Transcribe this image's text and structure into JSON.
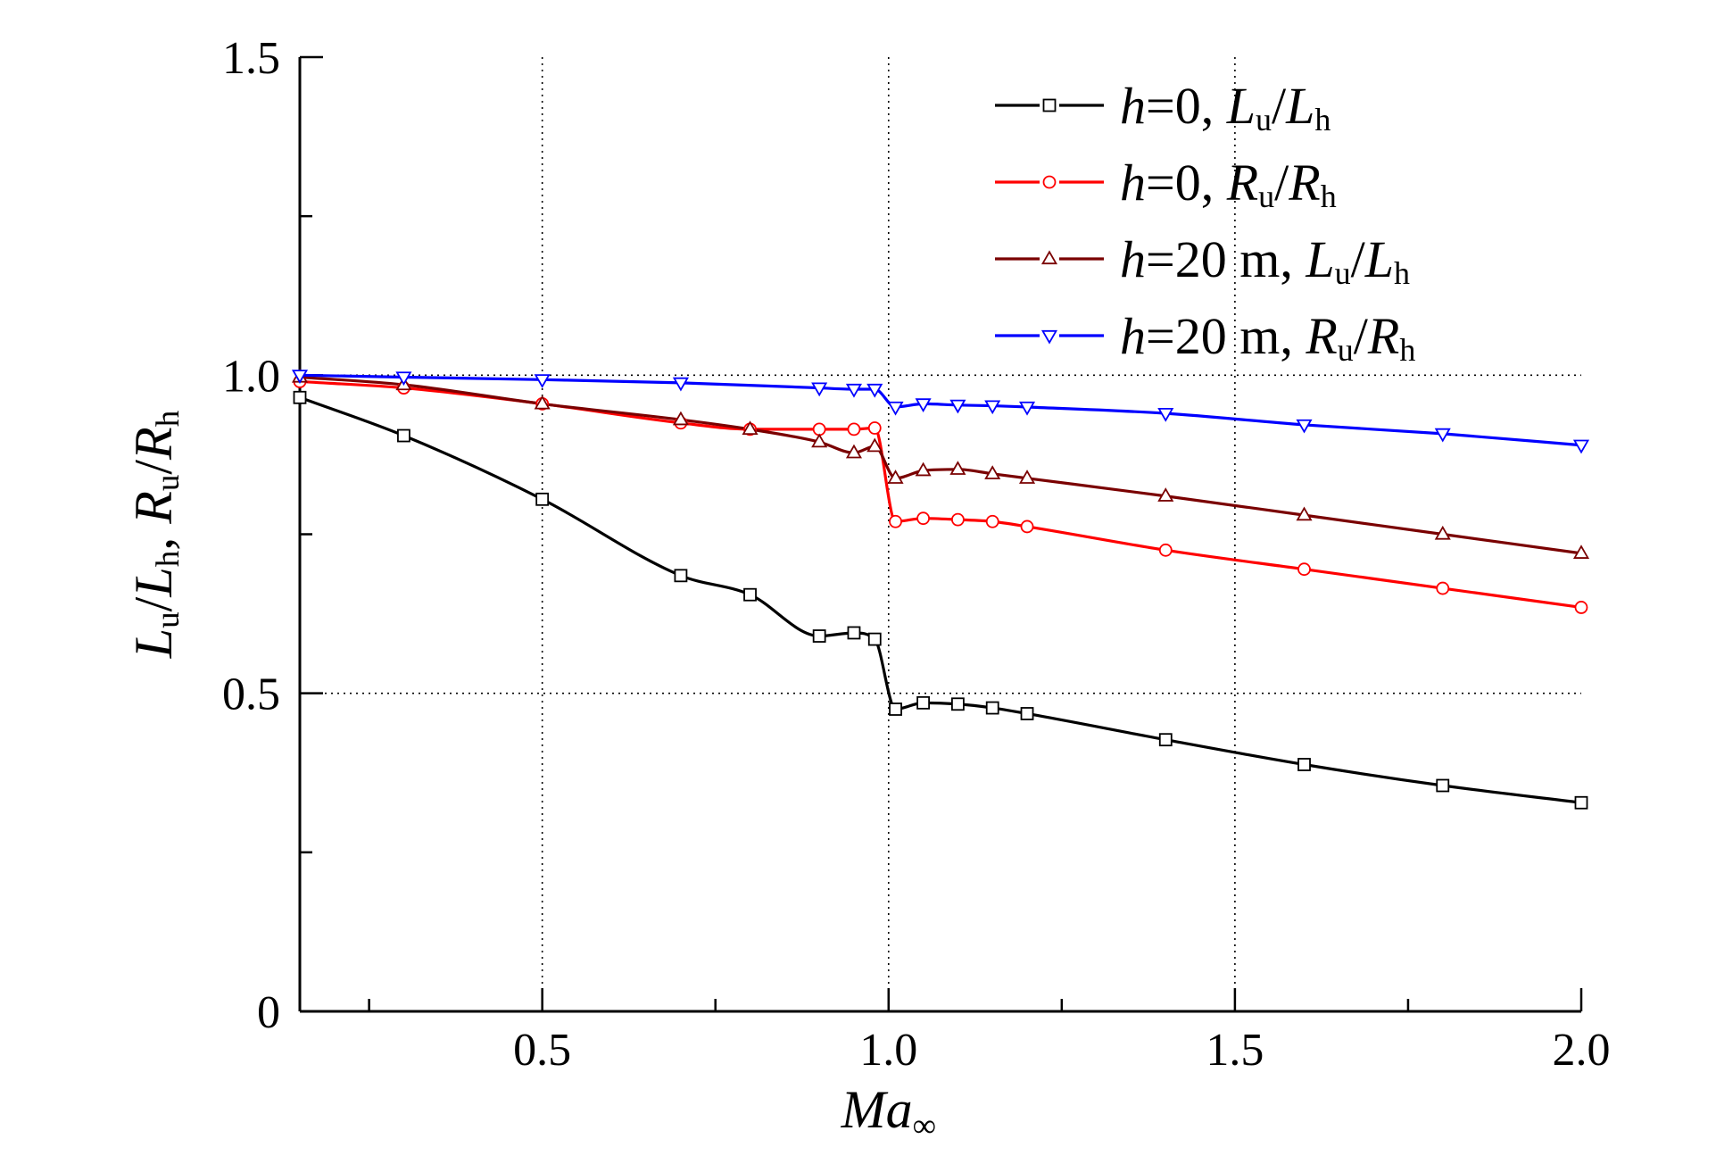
{
  "chart_data": {
    "type": "line",
    "title": "",
    "xlabel": "Ma∞",
    "ylabel": "Lu/Lh, Ru/Rh",
    "xlim": [
      0.15,
      2.0
    ],
    "ylim": [
      0,
      1.5
    ],
    "x_ticks": [
      0.5,
      1.0,
      1.5,
      2.0
    ],
    "x_tick_labels": [
      "0.5",
      "1.0",
      "1.5",
      "2.0"
    ],
    "y_ticks": [
      0,
      0.5,
      1.0,
      1.5
    ],
    "y_tick_labels": [
      "0",
      "0.5",
      "1.0",
      "1.5"
    ],
    "grid": "dotted lines at x = 0.5, 1.0, 1.5 and y = 0.5, 1.0",
    "legend_position": "top-right",
    "series": [
      {
        "name": "h=0, Lu/Lh",
        "color": "#000000",
        "marker": "square",
        "x": [
          0.15,
          0.3,
          0.5,
          0.7,
          0.8,
          0.9,
          0.95,
          0.98,
          1.01,
          1.05,
          1.1,
          1.15,
          1.2,
          1.4,
          1.6,
          1.8,
          2.0
        ],
        "y": [
          0.965,
          0.905,
          0.805,
          0.685,
          0.655,
          0.59,
          0.595,
          0.585,
          0.475,
          0.485,
          0.483,
          0.477,
          0.468,
          0.427,
          0.388,
          0.355,
          0.328
        ]
      },
      {
        "name": "h=0, Ru/Rh",
        "color": "#ff0000",
        "marker": "circle",
        "x": [
          0.15,
          0.3,
          0.5,
          0.7,
          0.8,
          0.9,
          0.95,
          0.98,
          1.01,
          1.05,
          1.1,
          1.15,
          1.2,
          1.4,
          1.6,
          1.8,
          2.0
        ],
        "y": [
          0.99,
          0.98,
          0.955,
          0.925,
          0.915,
          0.915,
          0.915,
          0.917,
          0.77,
          0.775,
          0.773,
          0.77,
          0.762,
          0.725,
          0.695,
          0.665,
          0.635
        ]
      },
      {
        "name": "h=20 m, Lu/Lh",
        "color": "#7a0000",
        "marker": "triangle-up",
        "x": [
          0.15,
          0.3,
          0.5,
          0.7,
          0.8,
          0.9,
          0.95,
          0.98,
          1.01,
          1.05,
          1.1,
          1.15,
          1.2,
          1.4,
          1.6,
          1.8,
          2.0
        ],
        "y": [
          0.997,
          0.985,
          0.955,
          0.93,
          0.915,
          0.895,
          0.878,
          0.888,
          0.838,
          0.85,
          0.852,
          0.845,
          0.838,
          0.81,
          0.78,
          0.75,
          0.72
        ]
      },
      {
        "name": "h=20 m, Ru/Rh",
        "color": "#0000ff",
        "marker": "triangle-down",
        "x": [
          0.15,
          0.3,
          0.5,
          0.7,
          0.9,
          0.95,
          0.98,
          1.01,
          1.05,
          1.1,
          1.15,
          1.2,
          1.4,
          1.6,
          1.8,
          2.0
        ],
        "y": [
          1.0,
          0.997,
          0.993,
          0.988,
          0.98,
          0.978,
          0.978,
          0.95,
          0.955,
          0.953,
          0.952,
          0.95,
          0.94,
          0.922,
          0.908,
          0.89
        ]
      }
    ]
  }
}
